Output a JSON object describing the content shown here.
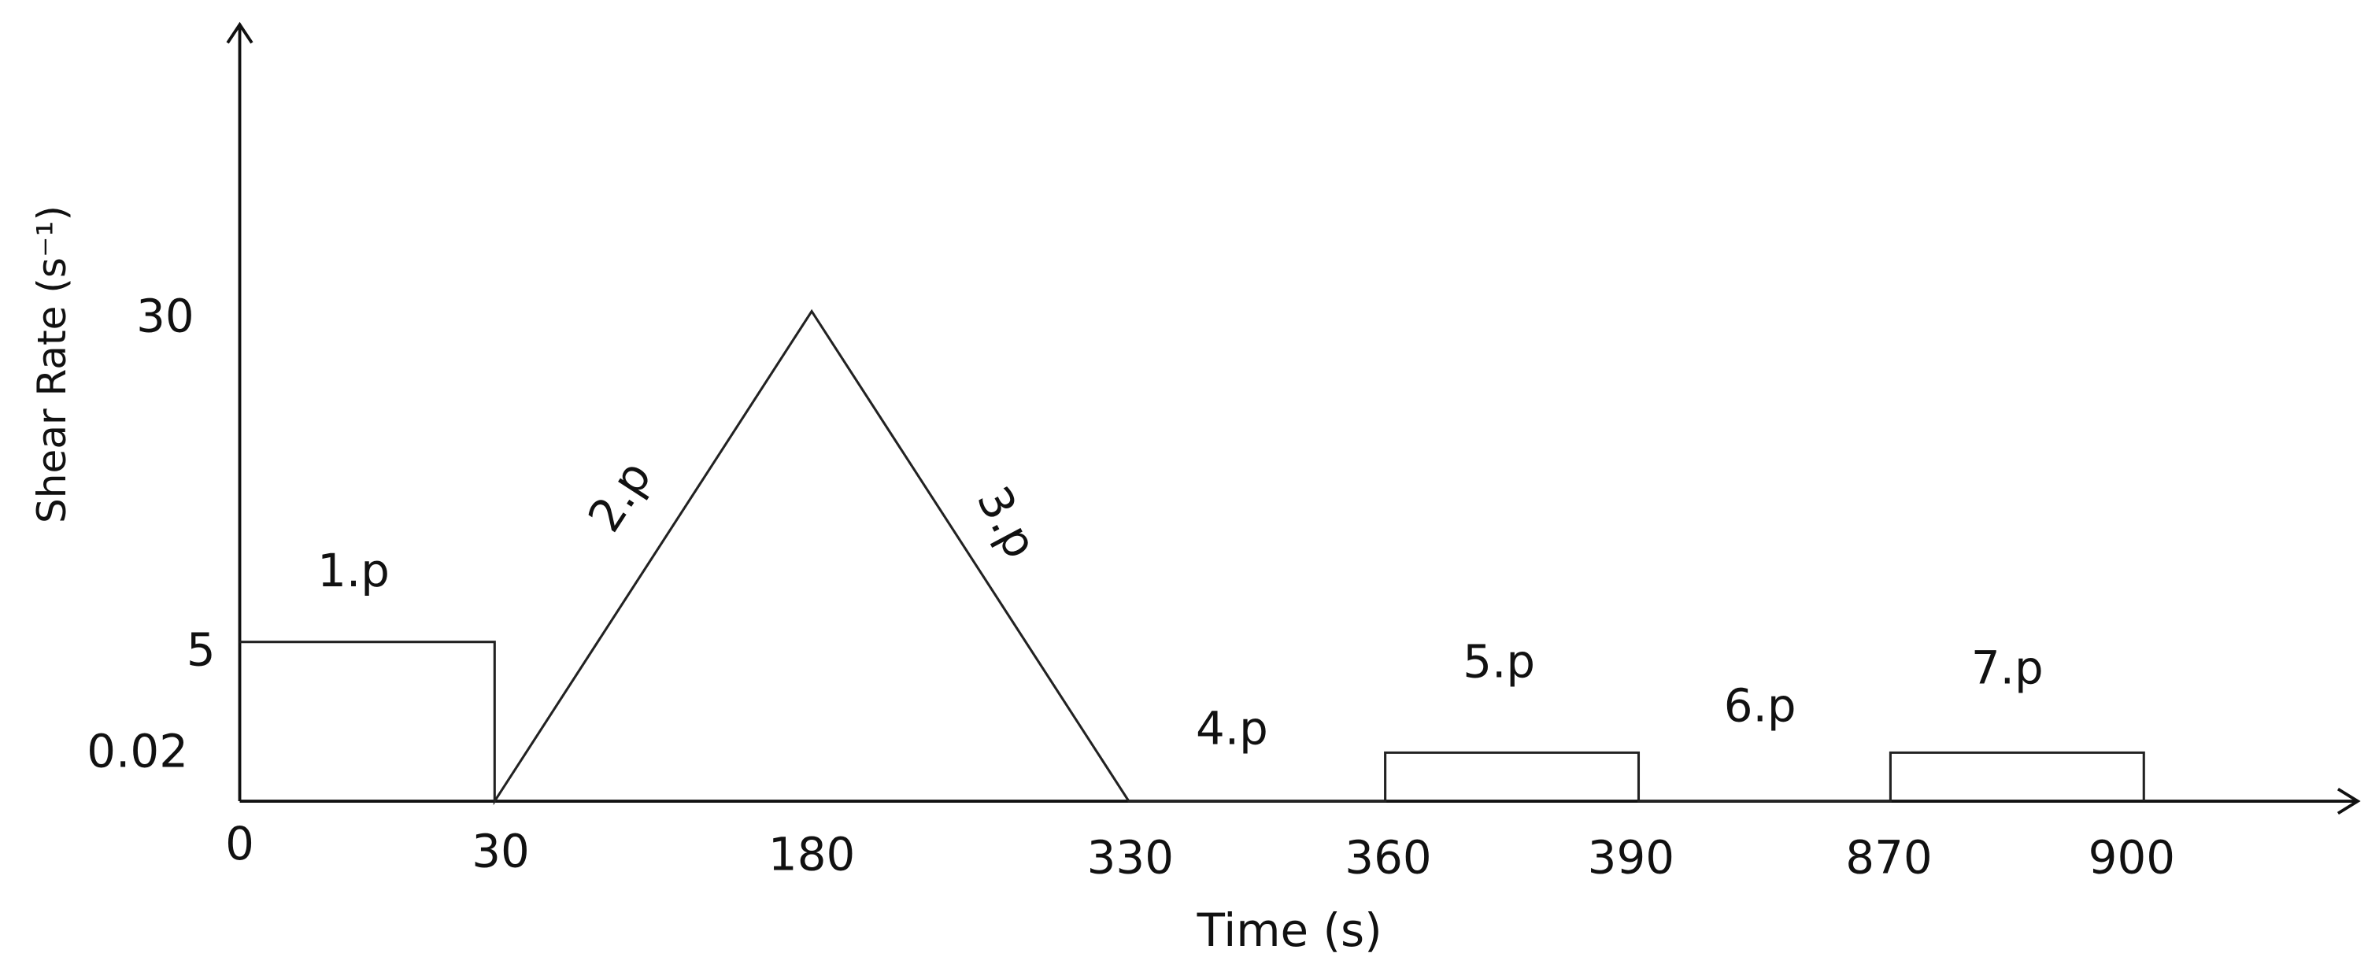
{
  "axes": {
    "x_title": "Time (s)",
    "y_title": "Shear Rate (s⁻¹)",
    "y_ticks": [
      "30",
      "5",
      "0.02"
    ],
    "x_ticks": [
      "0",
      "30",
      "180",
      "330",
      "360",
      "390",
      "870",
      "900"
    ]
  },
  "phases": [
    "1.p",
    "2.p",
    "3.p",
    "4.p",
    "5.p",
    "6.p",
    "7.p"
  ]
}
